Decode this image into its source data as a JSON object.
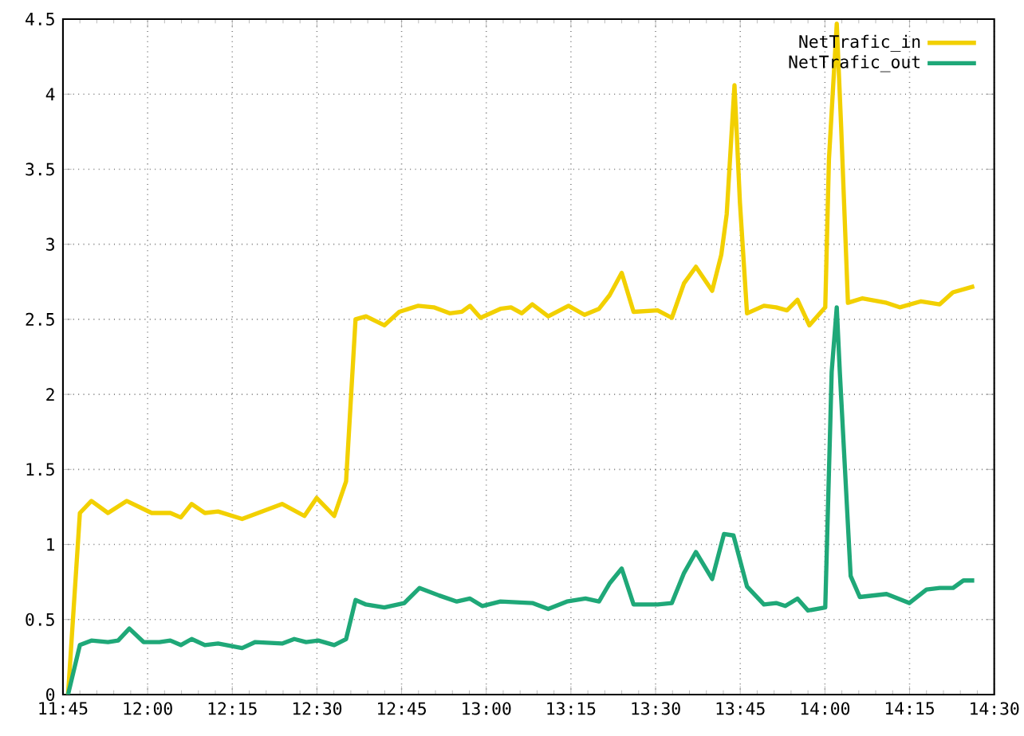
{
  "chart_data": {
    "type": "line",
    "xlim": [
      11.75,
      14.5
    ],
    "xticks": [
      {
        "value": 11.75,
        "label": "11:45"
      },
      {
        "value": 12.0,
        "label": "12:00"
      },
      {
        "value": 12.25,
        "label": "12:15"
      },
      {
        "value": 12.5,
        "label": "12:30"
      },
      {
        "value": 12.75,
        "label": "12:45"
      },
      {
        "value": 13.0,
        "label": "13:00"
      },
      {
        "value": 13.25,
        "label": "13:15"
      },
      {
        "value": 13.5,
        "label": "13:30"
      },
      {
        "value": 13.75,
        "label": "13:45"
      },
      {
        "value": 14.0,
        "label": "14:00"
      },
      {
        "value": 14.25,
        "label": "14:15"
      },
      {
        "value": 14.5,
        "label": "14:30"
      }
    ],
    "ylim": [
      0,
      4.5
    ],
    "yticks": [
      0,
      0.5,
      1,
      1.5,
      2,
      2.5,
      3,
      3.5,
      4,
      4.5
    ],
    "grid": true,
    "legend": "top right",
    "line_style": "solid",
    "series": [
      {
        "name": "NetTrafic_in",
        "color": "#f2d000",
        "x": [
          11.765,
          11.8,
          11.834,
          11.883,
          11.938,
          12.012,
          12.067,
          12.098,
          12.13,
          12.169,
          12.208,
          12.279,
          12.397,
          12.463,
          12.499,
          12.551,
          12.586,
          12.614,
          12.645,
          12.699,
          12.743,
          12.798,
          12.845,
          12.892,
          12.928,
          12.952,
          12.983,
          13.042,
          13.073,
          13.105,
          13.136,
          13.183,
          13.243,
          13.29,
          13.333,
          13.364,
          13.4,
          13.435,
          13.506,
          13.548,
          13.584,
          13.619,
          13.667,
          13.694,
          13.71,
          13.733,
          13.749,
          13.77,
          13.82,
          13.856,
          13.888,
          13.919,
          13.954,
          14.001,
          14.012,
          14.035,
          14.048,
          14.068,
          14.111,
          14.182,
          14.221,
          14.284,
          14.339,
          14.378,
          14.441
        ],
        "values": [
          0.0,
          1.21,
          1.29,
          1.21,
          1.29,
          1.21,
          1.21,
          1.18,
          1.27,
          1.21,
          1.22,
          1.17,
          1.27,
          1.19,
          1.31,
          1.19,
          1.42,
          2.5,
          2.52,
          2.46,
          2.55,
          2.59,
          2.58,
          2.54,
          2.55,
          2.59,
          2.51,
          2.57,
          2.58,
          2.54,
          2.6,
          2.52,
          2.59,
          2.53,
          2.57,
          2.66,
          2.81,
          2.55,
          2.56,
          2.51,
          2.74,
          2.85,
          2.69,
          2.93,
          3.2,
          4.06,
          3.28,
          2.54,
          2.59,
          2.58,
          2.56,
          2.63,
          2.46,
          2.58,
          3.57,
          4.47,
          3.78,
          2.61,
          2.64,
          2.61,
          2.58,
          2.62,
          2.6,
          2.68,
          2.72
        ]
      },
      {
        "name": "NetTrafic_out",
        "color": "#1fa878",
        "x": [
          11.765,
          11.8,
          11.834,
          11.883,
          11.913,
          11.946,
          11.988,
          12.035,
          12.067,
          12.098,
          12.13,
          12.169,
          12.208,
          12.279,
          12.318,
          12.397,
          12.433,
          12.468,
          12.504,
          12.551,
          12.586,
          12.614,
          12.645,
          12.699,
          12.758,
          12.803,
          12.861,
          12.913,
          12.952,
          12.988,
          13.042,
          13.136,
          13.183,
          13.238,
          13.293,
          13.333,
          13.364,
          13.4,
          13.435,
          13.506,
          13.548,
          13.584,
          13.619,
          13.667,
          13.702,
          13.73,
          13.77,
          13.82,
          13.856,
          13.883,
          13.919,
          13.95,
          14.001,
          14.02,
          14.035,
          14.044,
          14.076,
          14.103,
          14.182,
          14.249,
          14.3,
          14.339,
          14.378,
          14.409,
          14.441
        ],
        "values": [
          0.0,
          0.33,
          0.36,
          0.35,
          0.36,
          0.44,
          0.35,
          0.35,
          0.36,
          0.33,
          0.37,
          0.33,
          0.34,
          0.31,
          0.35,
          0.34,
          0.37,
          0.35,
          0.36,
          0.33,
          0.37,
          0.63,
          0.6,
          0.58,
          0.61,
          0.71,
          0.66,
          0.62,
          0.64,
          0.59,
          0.62,
          0.61,
          0.57,
          0.62,
          0.64,
          0.62,
          0.74,
          0.84,
          0.6,
          0.6,
          0.61,
          0.81,
          0.95,
          0.77,
          1.07,
          1.06,
          0.72,
          0.6,
          0.61,
          0.59,
          0.64,
          0.56,
          0.58,
          2.15,
          2.58,
          2.15,
          0.79,
          0.65,
          0.67,
          0.61,
          0.7,
          0.71,
          0.71,
          0.76,
          0.76
        ]
      }
    ]
  }
}
